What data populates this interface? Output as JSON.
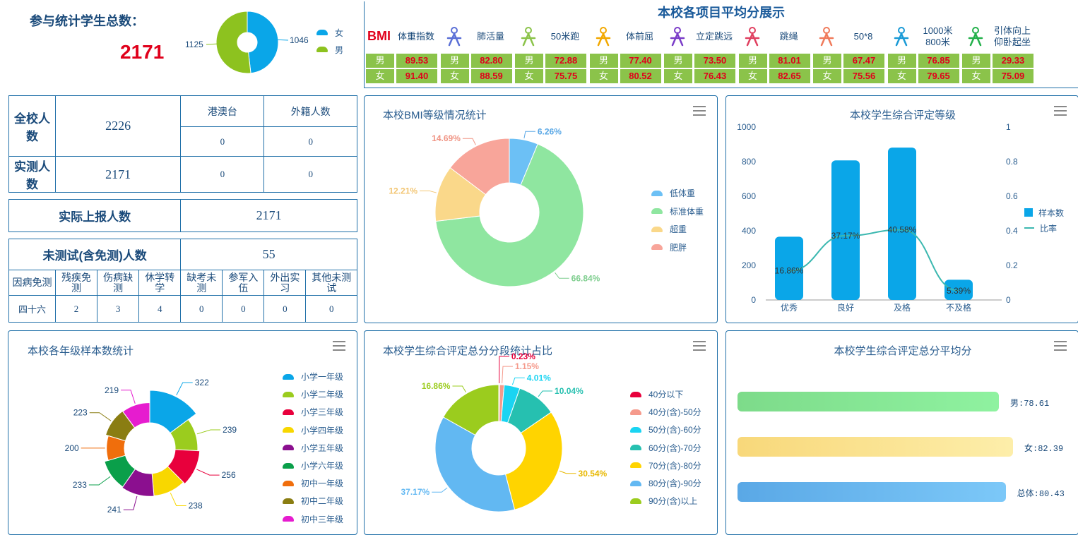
{
  "summary": {
    "total_label": "参与统计学生总数：",
    "total_value": "2171",
    "gender_counts": [
      {
        "name": "女",
        "value": 1046,
        "color": "#0aa6e8"
      },
      {
        "name": "男",
        "value": 1125,
        "color": "#8dc21f"
      }
    ],
    "gender_label_female": "1046",
    "gender_label_male": "1125"
  },
  "stats": {
    "school_total_label": "全校人数",
    "school_total": "2226",
    "hmt_label": "港澳台",
    "foreign_label": "外籍人数",
    "hmt_total": "0",
    "foreign_total": "0",
    "measured_label": "实测人数",
    "measured": "2171",
    "hmt_measured": "0",
    "foreign_measured": "0",
    "reported_label": "实际上报人数",
    "reported": "2171",
    "untested_label": "未测试(含免测)人数",
    "untested": "55",
    "reasons": [
      "因病免测",
      "残疾免测",
      "伤病缺测",
      "休学转学",
      "缺考未测",
      "参军入伍",
      "外出实习",
      "其他未测试"
    ],
    "reason_values": [
      "四十六",
      "2",
      "3",
      "4",
      "0",
      "0",
      "0",
      "0"
    ]
  },
  "projects": {
    "title": "本校各项目平均分展示",
    "male_label": "男",
    "female_label": "女",
    "items": [
      {
        "icon": "bmi-icon",
        "icon_text": "BMI",
        "name": "体重指数",
        "male": "89.53",
        "female": "91.40"
      },
      {
        "icon": "lung-icon",
        "name": "肺活量",
        "male": "82.80",
        "female": "88.59"
      },
      {
        "icon": "run-icon",
        "name": "50米跑",
        "male": "72.88",
        "female": "75.75"
      },
      {
        "icon": "sit-reach-icon",
        "name": "体前屈",
        "male": "77.40",
        "female": "80.52"
      },
      {
        "icon": "jump-icon",
        "name": "立定跳远",
        "male": "73.50",
        "female": "76.43"
      },
      {
        "icon": "rope-icon",
        "name": "跳绳",
        "male": "81.01",
        "female": "82.65"
      },
      {
        "icon": "shuttle-run-icon",
        "name": "50*8",
        "male": "67.47",
        "female": "75.56"
      },
      {
        "icon": "long-run-icon",
        "name": "1000米 800米",
        "male": "76.85",
        "female": "79.65"
      },
      {
        "icon": "pullup-icon",
        "name": "引体向上 仰卧起坐",
        "male": "29.33",
        "female": "75.09"
      }
    ]
  },
  "bmi": {
    "title": "本校BMI等级情况统计",
    "legend": [
      "低体重",
      "标准体重",
      "超重",
      "肥胖"
    ],
    "colors": [
      "#6cc0f5",
      "#8fe6a0",
      "#fad88a",
      "#f8a59a"
    ],
    "label_colors": [
      "#5aa8e6",
      "#7fce8f",
      "#f2c572",
      "#f09484"
    ],
    "values": [
      6.26,
      66.84,
      12.21,
      14.69
    ],
    "labels": [
      "6.26%",
      "66.84%",
      "12.21%",
      "14.69%"
    ]
  },
  "grade": {
    "title": "本校学生综合评定等级",
    "categories": [
      "优秀",
      "良好",
      "及格",
      "不及格"
    ],
    "samples": [
      366,
      807,
      881,
      117
    ],
    "ratios": [
      0.1686,
      0.3717,
      0.4058,
      0.0539
    ],
    "ratio_labels": [
      "16.86%",
      "37.17%",
      "40.58%",
      "5.39%"
    ],
    "y_left_ticks": [
      "0",
      "200",
      "400",
      "600",
      "800",
      "1000"
    ],
    "y_right_ticks": [
      "0",
      "0.2",
      "0.4",
      "0.6",
      "0.8",
      "1"
    ],
    "legend_bar": "样本数",
    "legend_line": "比率"
  },
  "grades_sample": {
    "title": "本校各年级样本数统计",
    "legend": [
      "小学一年级",
      "小学二年级",
      "小学三年级",
      "小学四年级",
      "小学五年级",
      "小学六年级",
      "初中一年级",
      "初中二年级",
      "初中三年级"
    ],
    "colors": [
      "#0aa6e8",
      "#9bcc1e",
      "#e8003c",
      "#f8d700",
      "#8b0f8f",
      "#0a9f4a",
      "#f06e0c",
      "#8a7d12",
      "#e61ccf"
    ],
    "values": [
      322,
      239,
      256,
      238,
      241,
      233,
      200,
      223,
      219
    ],
    "labels": [
      "322",
      "239",
      "256",
      "238",
      "241",
      "233",
      "200",
      "223",
      "219"
    ]
  },
  "score_dist": {
    "title": "本校学生综合评定总分分段统计占比",
    "legend": [
      "40分以下",
      "40分(含)-50分",
      "50分(含)-60分",
      "60分(含)-70分",
      "70分(含)-80分",
      "80分(含)-90分",
      "90分(含)以上"
    ],
    "colors": [
      "#e8003c",
      "#f59a8c",
      "#1ad4f2",
      "#26c0b0",
      "#ffd400",
      "#62b8f2",
      "#9bcc1e"
    ],
    "values": [
      0.23,
      1.15,
      4.01,
      10.04,
      30.54,
      37.17,
      16.86
    ],
    "labels": [
      "0.23%",
      "1.15%",
      "4.01%",
      "10.04%",
      "30.54%",
      "37.17%",
      "16.86%"
    ]
  },
  "avg_score": {
    "title": "本校学生综合评定总分平均分",
    "items": [
      {
        "label": "男:78.61",
        "value": 78.61,
        "color1": "#7ddb8a",
        "color2": "#8ff2a0"
      },
      {
        "label": "女:82.39",
        "value": 82.39,
        "color1": "#f8d87a",
        "color2": "#fdeeaa"
      },
      {
        "label": "总体:80.43",
        "value": 80.43,
        "color1": "#5aa8e6",
        "color2": "#7cc8f8"
      }
    ]
  }
}
